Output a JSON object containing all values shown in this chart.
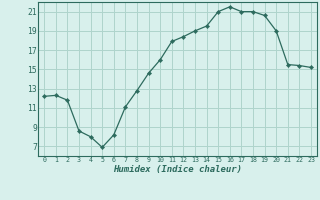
{
  "title": "",
  "xlabel": "Humidex (Indice chaleur)",
  "ylabel": "",
  "x": [
    0,
    1,
    2,
    3,
    4,
    5,
    6,
    7,
    8,
    9,
    10,
    11,
    12,
    13,
    14,
    15,
    16,
    17,
    18,
    19,
    20,
    21,
    22,
    23
  ],
  "y": [
    12.2,
    12.3,
    11.8,
    8.6,
    8.0,
    6.9,
    8.2,
    11.1,
    12.8,
    14.6,
    16.0,
    17.9,
    18.4,
    19.0,
    19.5,
    21.0,
    21.5,
    21.0,
    21.0,
    20.6,
    19.0,
    15.5,
    15.4,
    15.2
  ],
  "line_color": "#2d6b5e",
  "marker_color": "#2d6b5e",
  "bg_color": "#d8f0ec",
  "grid_color": "#aed4cc",
  "axis_color": "#2d6b5e",
  "tick_label_color": "#2d6b5e",
  "ylim": [
    6,
    22
  ],
  "yticks": [
    7,
    9,
    11,
    13,
    15,
    17,
    19,
    21
  ],
  "xlim": [
    -0.5,
    23.5
  ],
  "xticks": [
    0,
    1,
    2,
    3,
    4,
    5,
    6,
    7,
    8,
    9,
    10,
    11,
    12,
    13,
    14,
    15,
    16,
    17,
    18,
    19,
    20,
    21,
    22,
    23
  ]
}
